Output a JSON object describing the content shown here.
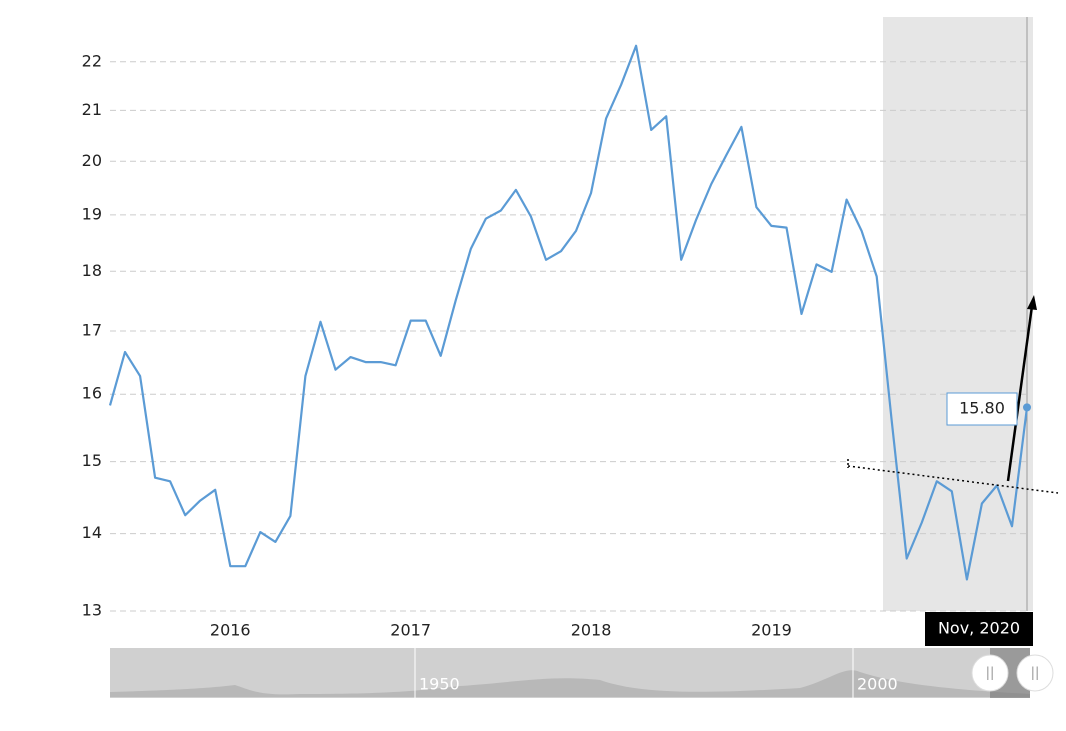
{
  "chart_data": {
    "type": "line",
    "categories": [
      null,
      null,
      null,
      null,
      null,
      null,
      null,
      null,
      "2016",
      null,
      null,
      null,
      null,
      null,
      null,
      null,
      null,
      null,
      null,
      null,
      "2017",
      null,
      null,
      null,
      null,
      null,
      null,
      null,
      null,
      null,
      null,
      null,
      "2018",
      null,
      null,
      null,
      null,
      null,
      null,
      null,
      null,
      null,
      null,
      null,
      "2019",
      null,
      null,
      null,
      null,
      null,
      null,
      null,
      null,
      null,
      null,
      null,
      null,
      null,
      null,
      null,
      null,
      null
    ],
    "values": [
      15.83,
      16.66,
      16.28,
      14.77,
      14.72,
      14.25,
      14.45,
      14.6,
      13.57,
      13.57,
      14.02,
      13.89,
      14.24,
      16.28,
      17.15,
      16.38,
      16.58,
      16.5,
      16.5,
      16.45,
      17.17,
      17.17,
      16.6,
      17.51,
      18.39,
      18.93,
      19.08,
      19.46,
      18.97,
      18.2,
      18.35,
      18.71,
      19.4,
      20.84,
      21.52,
      22.34,
      20.61,
      20.88,
      18.2,
      18.92,
      19.57,
      20.12,
      20.67,
      19.14,
      18.8,
      18.77,
      17.28,
      18.12,
      17.99,
      19.28,
      18.71,
      17.91,
      15.6,
      13.67,
      14.15,
      14.72,
      14.58,
      13.4,
      14.41,
      14.66,
      14.1,
      15.8
    ],
    "color": "#5b9bd5",
    "ylim": [
      13,
      23
    ],
    "yticks": [
      13,
      14,
      15,
      16,
      17,
      18,
      19,
      20,
      21,
      22
    ],
    "log_scale": true,
    "grid": true,
    "tooltip": {
      "x_label": "Nov, 2020",
      "value_label": "15.80"
    },
    "navigator_labels": [
      "1950",
      "2000"
    ]
  }
}
